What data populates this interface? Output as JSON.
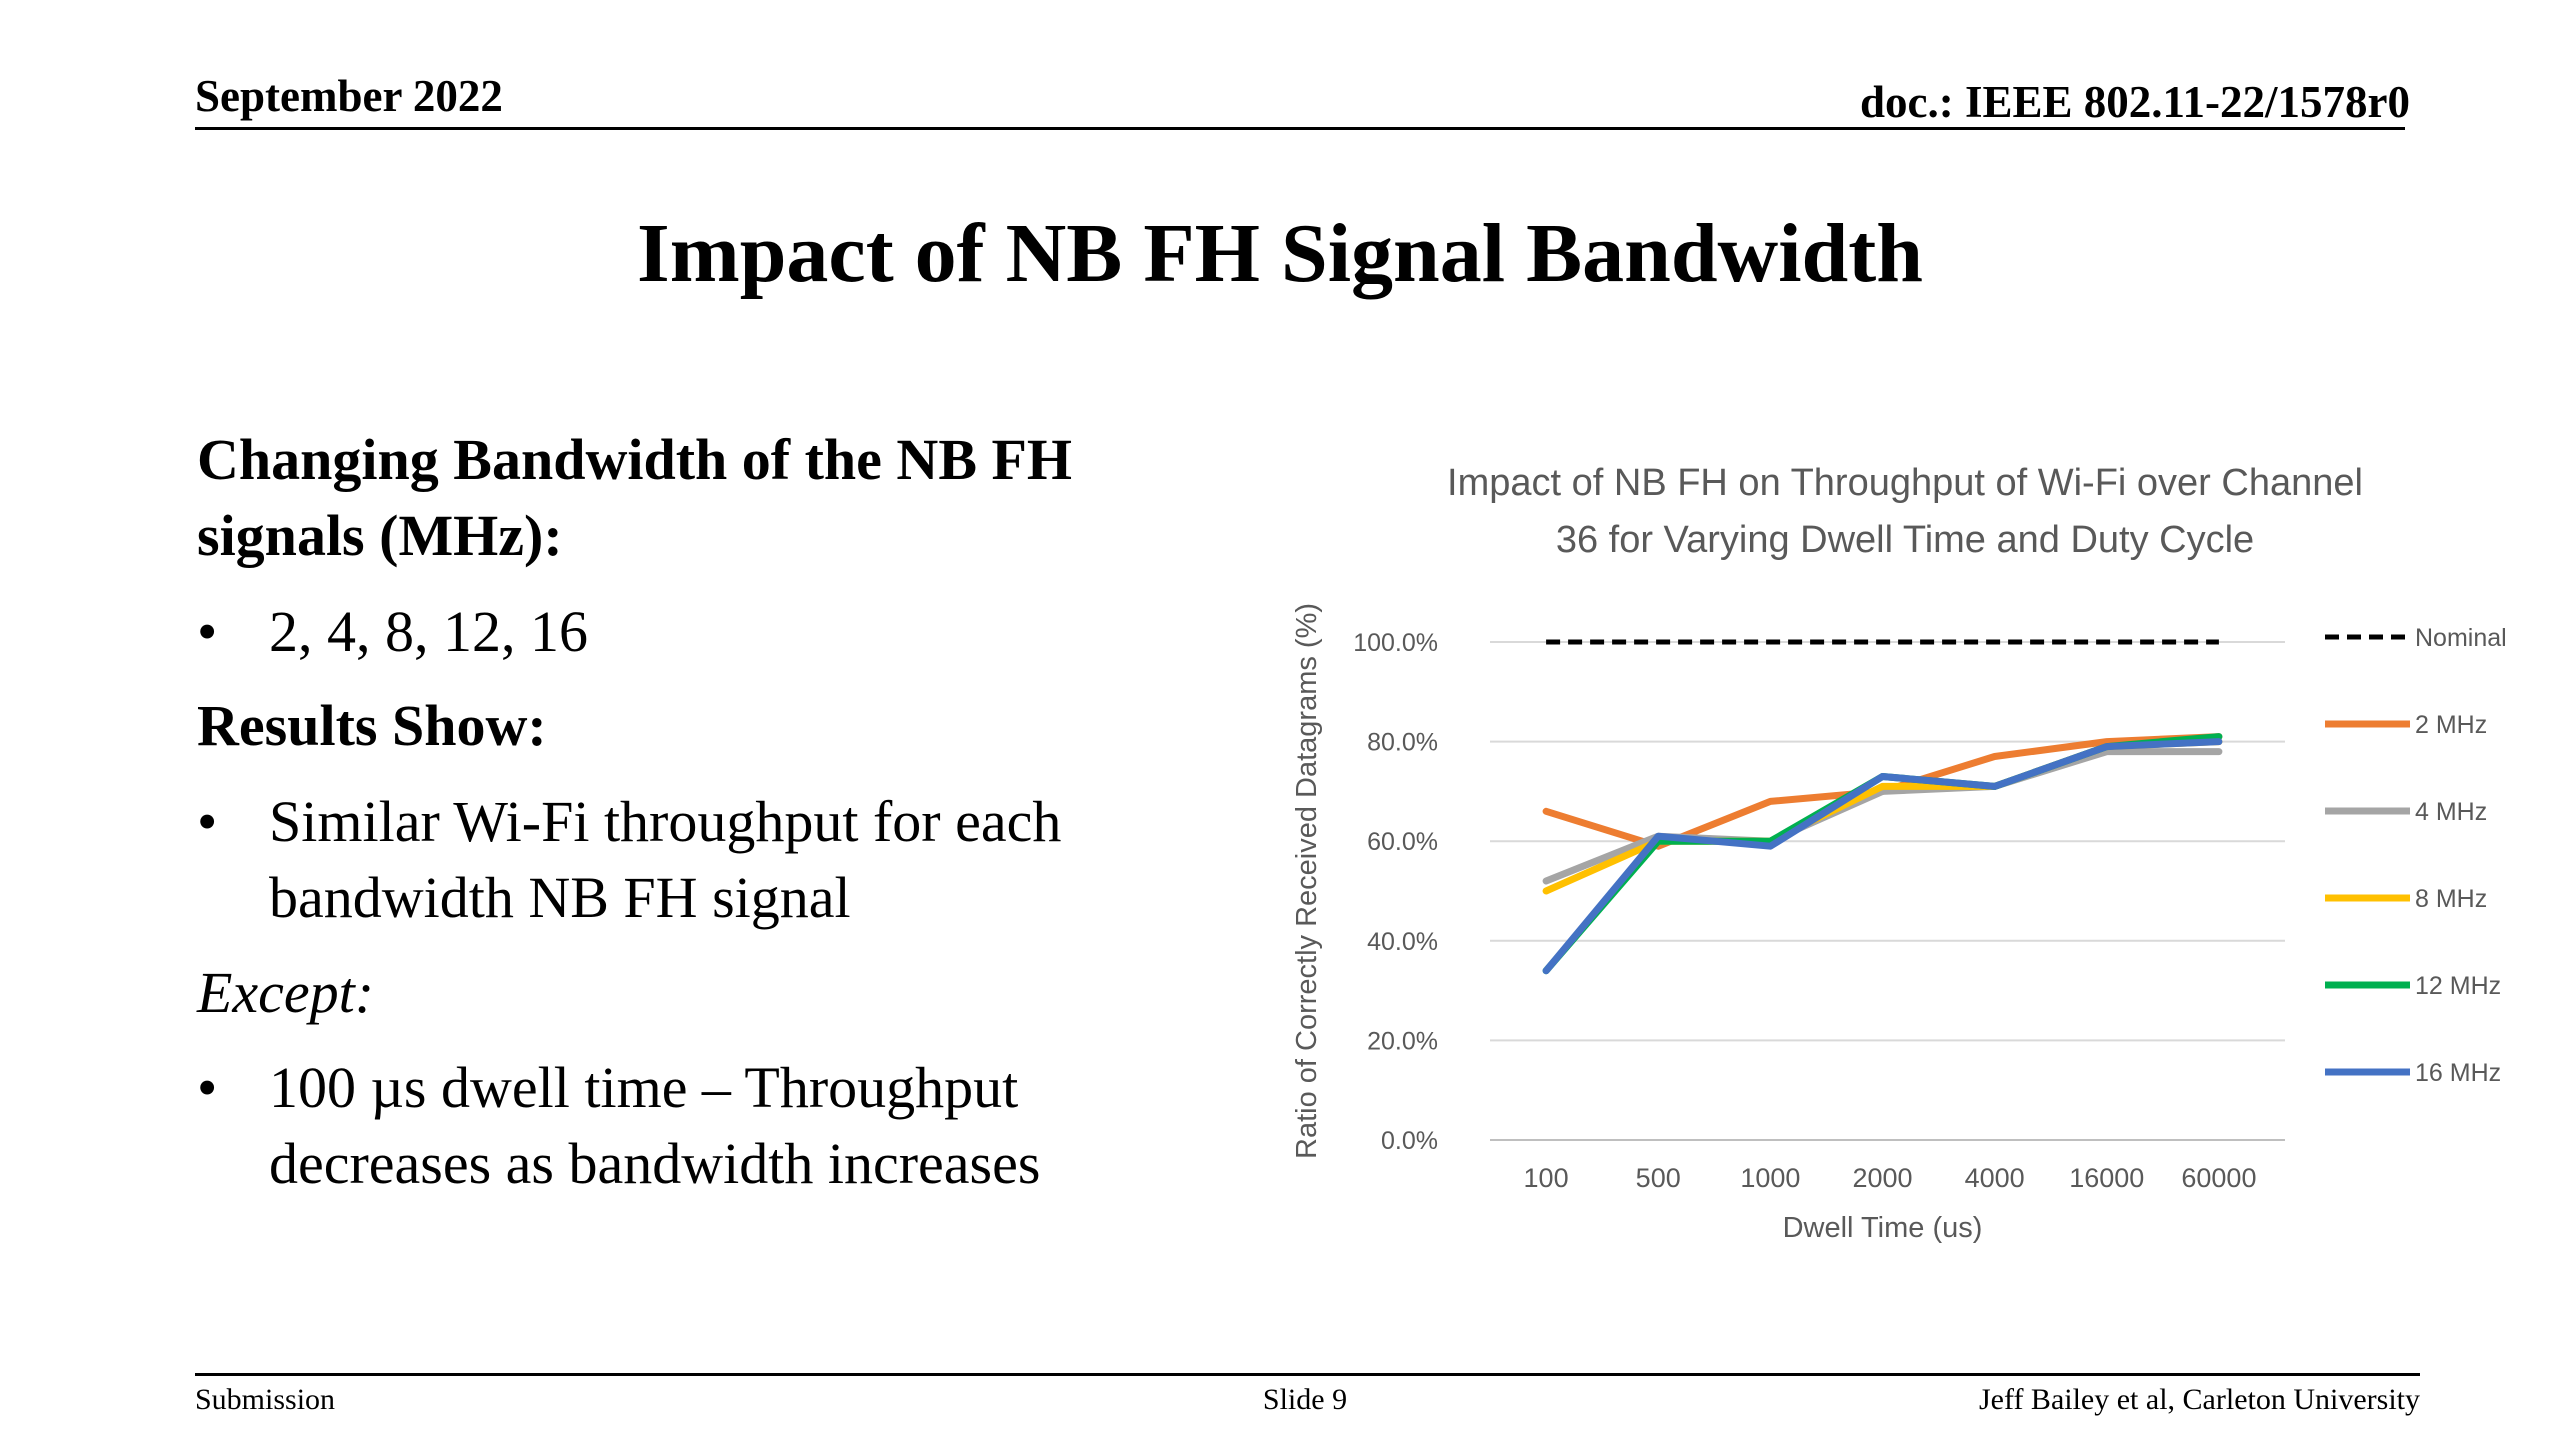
{
  "header": {
    "date": "September 2022",
    "doc": "doc.: IEEE 802.11-22/1578r0"
  },
  "title": "Impact of NB FH Signal Bandwidth",
  "body": {
    "heading1": "Changing Bandwidth of the NB FH",
    "heading1_line2": "signals (MHz):",
    "bullet1": "2, 4, 8, 12, 16",
    "heading2": "Results Show:",
    "bullet2_line1": "Similar Wi-Fi throughput for each",
    "bullet2_line2": "bandwidth NB FH signal",
    "except": "Except:",
    "bullet3_line1": "100 µs dwell time – Throughput",
    "bullet3_line2": "decreases as bandwidth increases",
    "bullet_symbol": "•"
  },
  "footer": {
    "left": "Submission",
    "center": "Slide 9",
    "right": "Jeff Bailey et al, Carleton University"
  },
  "chart_data": {
    "type": "line",
    "title": "Impact of NB FH on Throughput of Wi-Fi over Channel 36 for Varying Dwell Time and Duty Cycle",
    "title_line1": "Impact of NB FH on Throughput of Wi-Fi over Channel",
    "title_line2": "36 for Varying Dwell Time and Duty Cycle",
    "xlabel": "Dwell Time (us)",
    "ylabel": "Ratio of Correctly Received Datagrams (%)",
    "categories": [
      "100",
      "500",
      "1000",
      "2000",
      "4000",
      "16000",
      "60000"
    ],
    "yticks": [
      "0.0%",
      "20.0%",
      "40.0%",
      "60.0%",
      "80.0%",
      "100.0%"
    ],
    "ylim": [
      0,
      100
    ],
    "grid": true,
    "legend_position": "right",
    "series": [
      {
        "name": "Nominal",
        "color": "#000000",
        "dashed": true,
        "values": [
          100,
          100,
          100,
          100,
          100,
          100,
          100
        ]
      },
      {
        "name": "2 MHz",
        "color": "#ED7D31",
        "dashed": false,
        "values": [
          66,
          59,
          68,
          70,
          77,
          80,
          81
        ]
      },
      {
        "name": "4 MHz",
        "color": "#A5A5A5",
        "dashed": false,
        "values": [
          52,
          61,
          60,
          70,
          71,
          78,
          78
        ]
      },
      {
        "name": "8 MHz",
        "color": "#FFC000",
        "dashed": false,
        "values": [
          50,
          60,
          60,
          71,
          71,
          79,
          80
        ]
      },
      {
        "name": "12 MHz",
        "color": "#00B050",
        "dashed": false,
        "values": [
          34,
          60,
          60,
          73,
          71,
          79,
          81
        ]
      },
      {
        "name": "16 MHz",
        "color": "#4472C4",
        "dashed": false,
        "values": [
          34,
          61,
          59,
          73,
          71,
          79,
          80
        ]
      }
    ]
  }
}
